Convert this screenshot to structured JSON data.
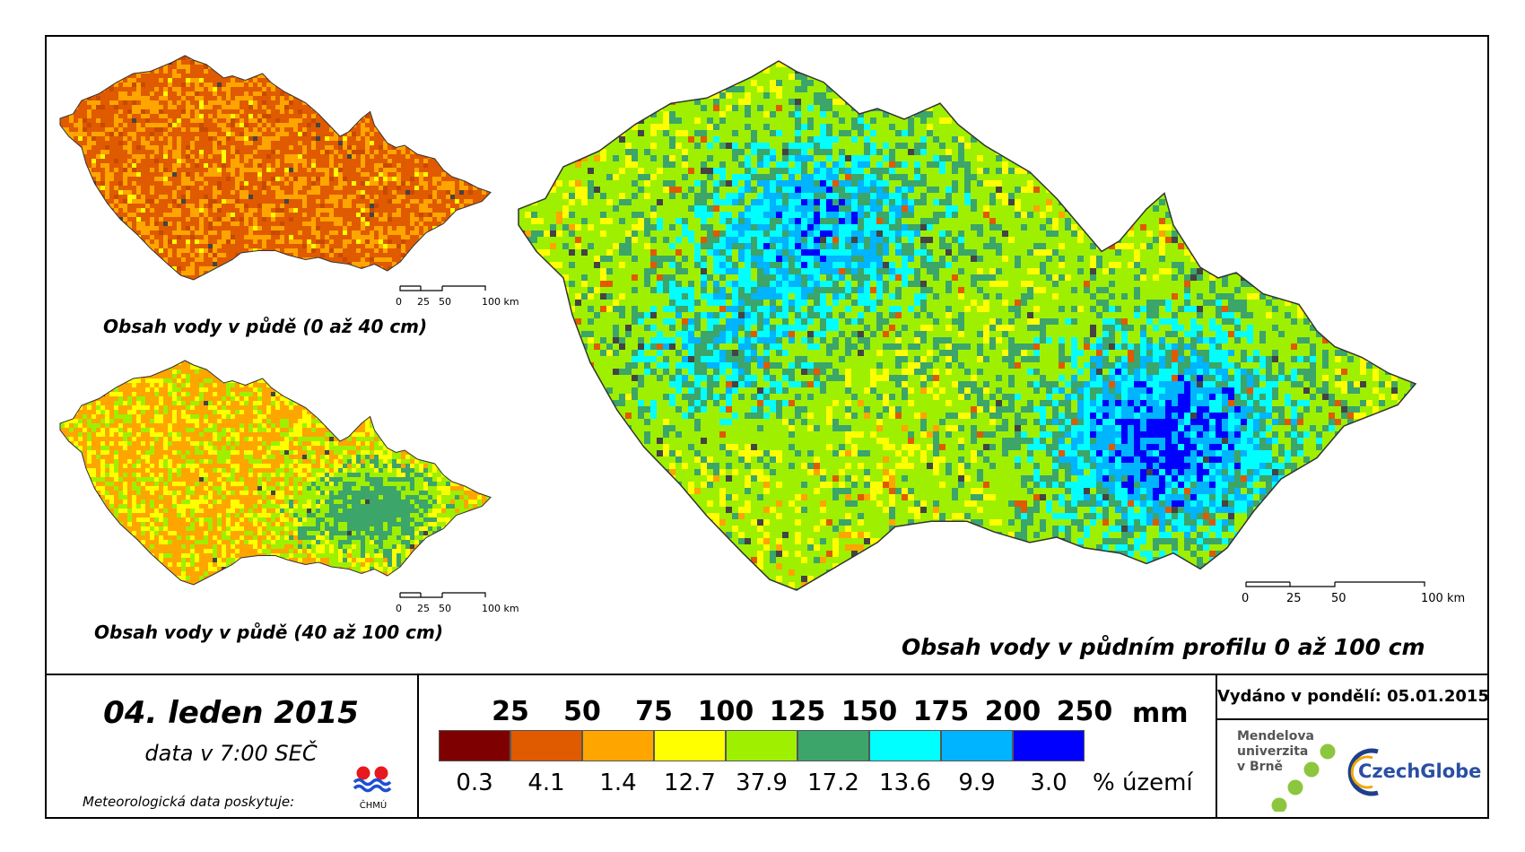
{
  "maps": {
    "topsoil": {
      "title": "Obsah vody v půdě (0 až 40 cm)"
    },
    "subsoil": {
      "title": "Obsah vody v půdě (40 až 100 cm)"
    },
    "profile": {
      "title": "Obsah vody v půdním profilu 0 až 100 cm"
    }
  },
  "scale_labels": [
    "0",
    "25",
    "50",
    "100 km"
  ],
  "footer": {
    "date": "04. leden 2015",
    "time": "data v 7:00 SEČ",
    "source_label": "Meteorologická data poskytuje:",
    "source_org": "ČHMÚ",
    "issued": "Vydáno v pondělí: 05.01.2015",
    "mendel": [
      "Mendelova",
      "univerzita",
      "v Brně"
    ],
    "czechglobe": "CzechGlobe"
  },
  "legend": {
    "unit": "mm",
    "pct_unit": "% území",
    "thresholds": [
      "25",
      "50",
      "75",
      "100",
      "125",
      "150",
      "175",
      "200",
      "250"
    ],
    "classes": [
      {
        "color": "#7f0000",
        "pct": 0.3
      },
      {
        "color": "#e05a00",
        "pct": 4.1
      },
      {
        "color": "#ffa500",
        "pct": 1.4
      },
      {
        "color": "#ffff00",
        "pct": 12.7
      },
      {
        "color": "#9ef000",
        "pct": 37.9
      },
      {
        "color": "#3ca56a",
        "pct": 17.2
      },
      {
        "color": "#00ffff",
        "pct": 13.6
      },
      {
        "color": "#00b4ff",
        "pct": 9.9
      },
      {
        "color": "#0000ff",
        "pct": 3.0
      }
    ]
  }
}
